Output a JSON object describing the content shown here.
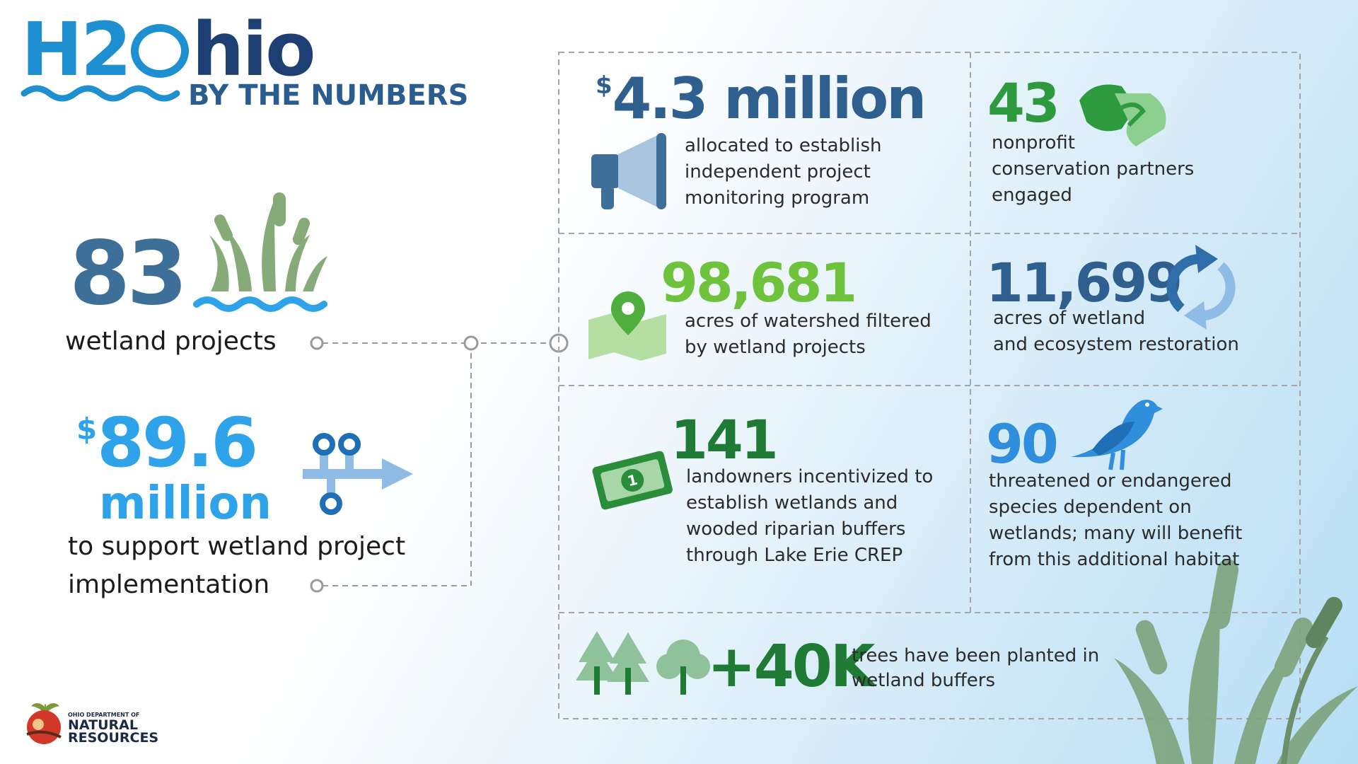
{
  "logo": {
    "part1": "H2",
    "part2": "hio",
    "subtitle": "BY THE NUMBERS"
  },
  "left_stats": {
    "wetland_projects": {
      "number": "83",
      "label": "wetland projects"
    },
    "funding": {
      "currency": "$",
      "amount": "89.6",
      "unit": "million",
      "label_line1": "to support wetland project",
      "label_line2": "implementation"
    }
  },
  "panels": [
    {
      "id": "monitoring",
      "currency": "$",
      "value": "4.3 million",
      "description": "allocated to establish\nindependent project\nmonitoring program",
      "icon": "megaphone-icon"
    },
    {
      "id": "partners",
      "value": "43",
      "description": "nonprofit\nconservation partners\nengaged",
      "icon": "handshake-icon"
    },
    {
      "id": "watershed",
      "value": "98,681",
      "description": "acres of watershed filtered\nby wetland projects",
      "icon": "map-pin-icon"
    },
    {
      "id": "restoration",
      "value": "11,699",
      "description": "acres of wetland\nand ecosystem restoration",
      "icon": "refresh-arrows-icon"
    },
    {
      "id": "landowners",
      "value": "141",
      "description": "landowners incentivized to\nestablish wetlands and\nwooded riparian buffers\nthrough Lake Erie CREP",
      "icon": "dollar-bill-icon"
    },
    {
      "id": "species",
      "value": "90",
      "description": "threatened or endangered\nspecies dependent on\nwetlands; many will benefit\nfrom this additional habitat",
      "icon": "bird-icon"
    },
    {
      "id": "trees",
      "value": "+40K",
      "description": "trees have been planted in\nwetland buffers",
      "icon": "trees-icon"
    }
  ],
  "footer_logo": {
    "line1": "OHIO DEPARTMENT OF",
    "line2": "NATURAL",
    "line3": "RESOURCES"
  },
  "colors": {
    "brand_blue": "#1e8fd0",
    "navy": "#2f5f8e",
    "green": "#2e9a3e",
    "light_green": "#6ec23c",
    "sky_blue": "#2ea3ea"
  }
}
